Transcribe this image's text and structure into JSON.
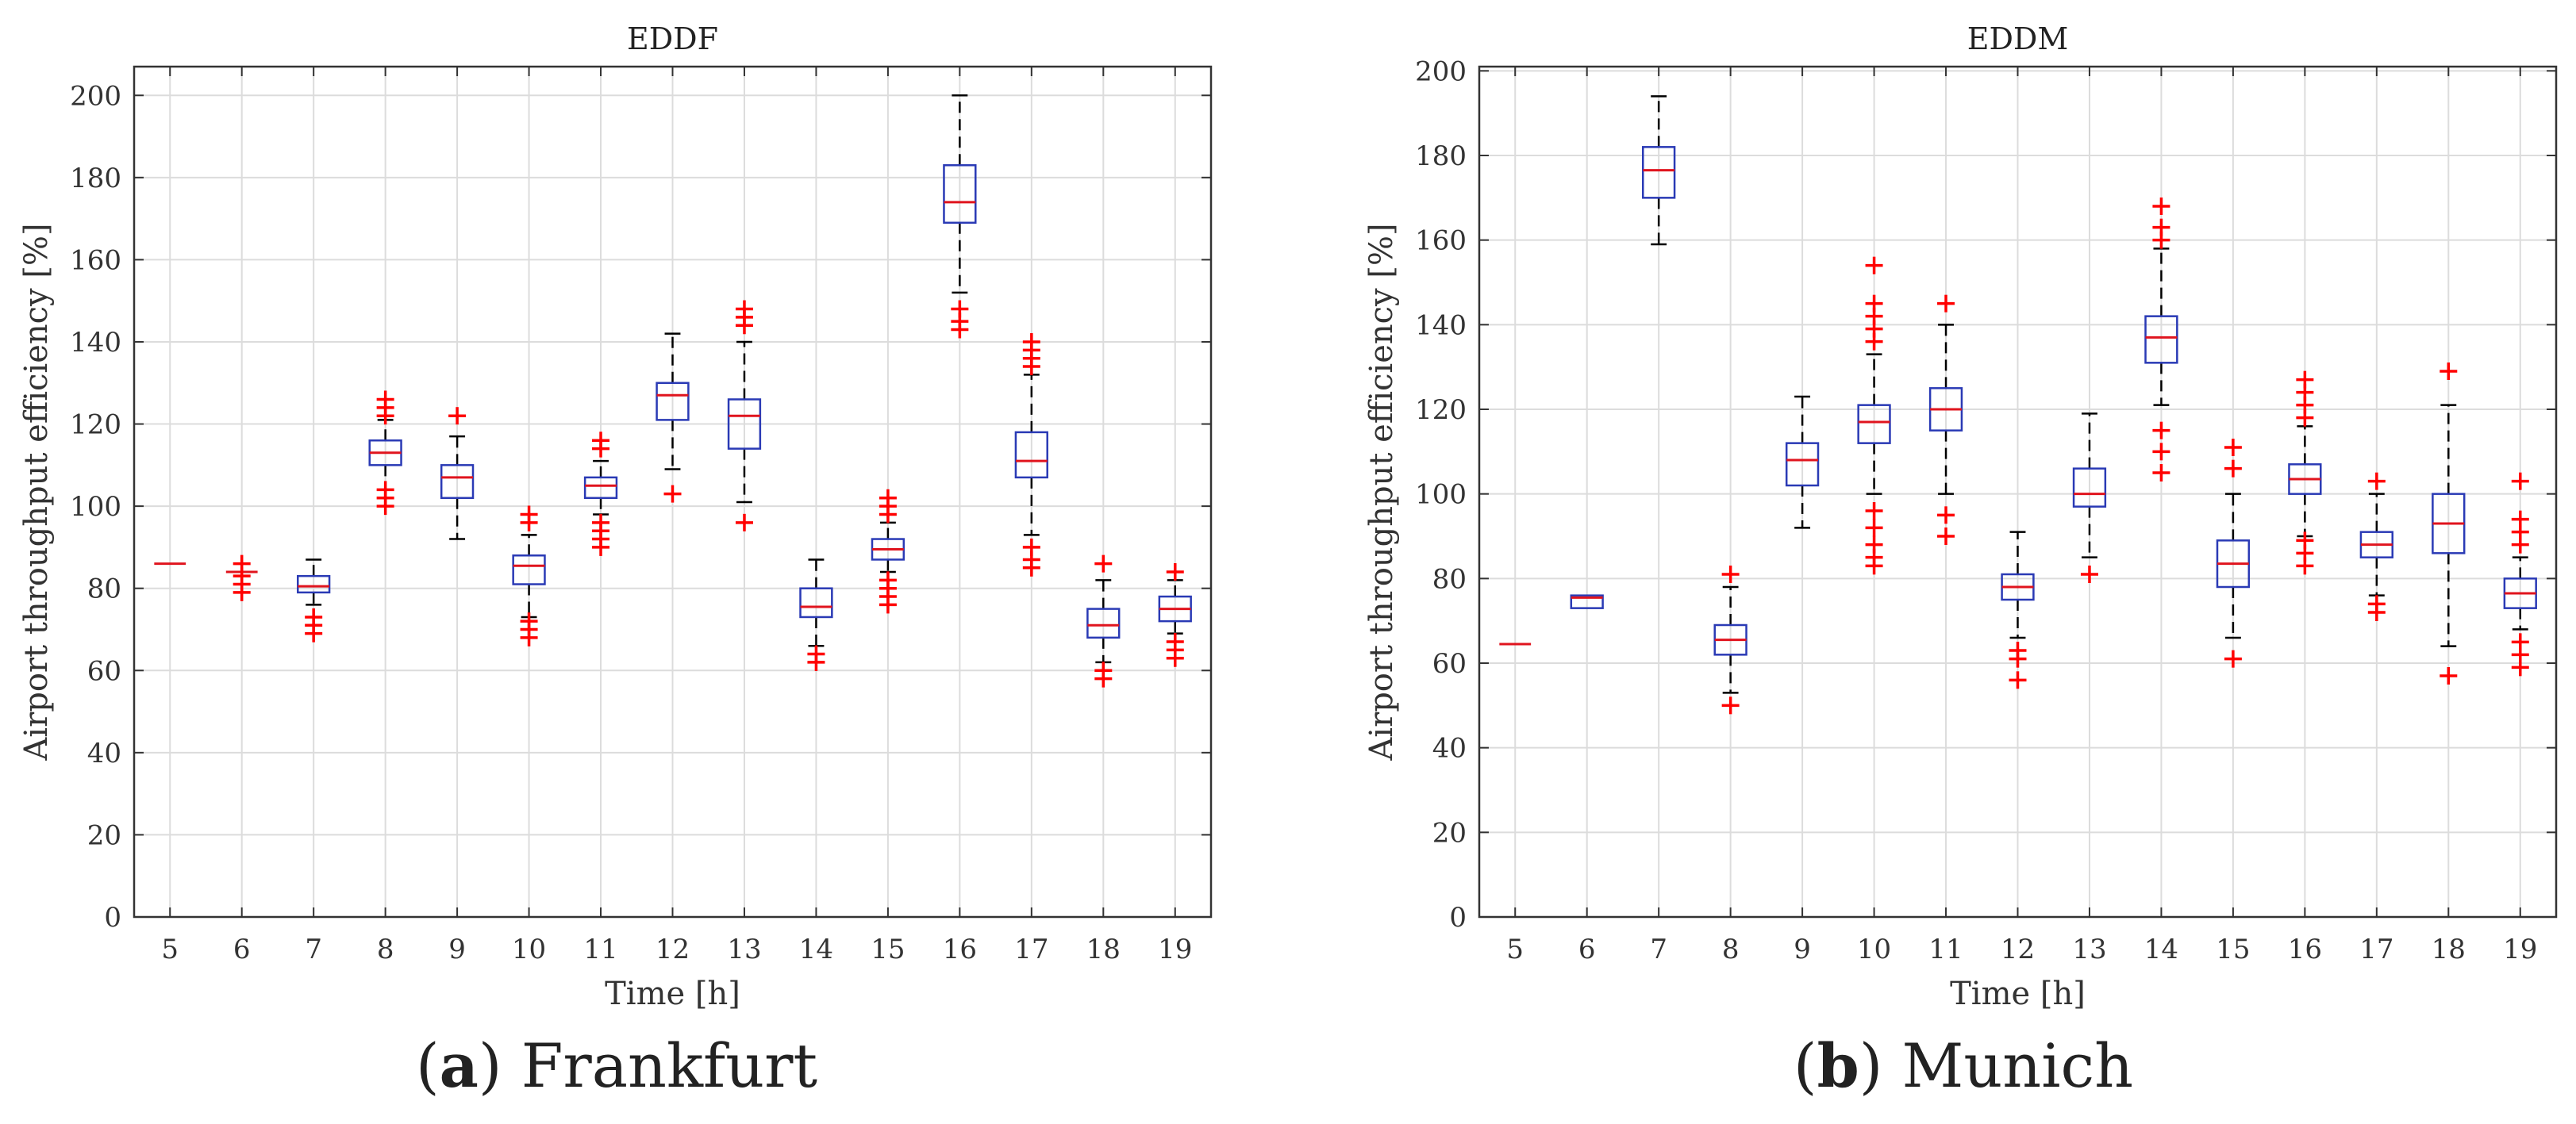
{
  "colors": {
    "box": "#2a3ab5",
    "median": "#e0141e",
    "outlier": "#ff0000",
    "whisker": "#000000",
    "grid": "#dcdcdc",
    "axis": "#333333"
  },
  "chart_data": [
    {
      "type": "boxplot",
      "title": "EDDF",
      "xlabel": "Time [h]",
      "ylabel": "Airport throughput efficiency [%]",
      "ylim": [
        0,
        207
      ],
      "yticks": [
        "0",
        "20",
        "40",
        "60",
        "80",
        "100",
        "120",
        "140",
        "160",
        "180",
        "200"
      ],
      "ytick_values": [
        0,
        20,
        40,
        60,
        80,
        100,
        120,
        140,
        160,
        180,
        200
      ],
      "grid": true,
      "caption_letter": "a",
      "caption_text": "Frankfurt",
      "boxes": [
        {
          "x": "5",
          "min": 86,
          "q1": 86,
          "median": 86,
          "q3": 86,
          "max": 86,
          "outliers": []
        },
        {
          "x": "6",
          "min": 84,
          "q1": 84,
          "median": 84,
          "q3": 84,
          "max": 84,
          "outliers": [
            79,
            81,
            83,
            86
          ]
        },
        {
          "x": "7",
          "min": 76,
          "q1": 79,
          "median": 80.5,
          "q3": 83,
          "max": 87,
          "outliers": [
            69,
            71,
            73
          ]
        },
        {
          "x": "8",
          "min": 104,
          "q1": 110,
          "median": 113,
          "q3": 116,
          "max": 121,
          "outliers": [
            100,
            102,
            104,
            122,
            124,
            126
          ]
        },
        {
          "x": "9",
          "min": 92,
          "q1": 102,
          "median": 107,
          "q3": 110,
          "max": 117,
          "outliers": [
            122
          ]
        },
        {
          "x": "10",
          "min": 73,
          "q1": 81,
          "median": 85.5,
          "q3": 88,
          "max": 93,
          "outliers": [
            68,
            70,
            72,
            96,
            98
          ]
        },
        {
          "x": "11",
          "min": 98,
          "q1": 102,
          "median": 105,
          "q3": 107,
          "max": 111,
          "outliers": [
            90,
            92,
            94,
            96,
            114,
            116
          ]
        },
        {
          "x": "12",
          "min": 109,
          "q1": 121,
          "median": 127,
          "q3": 130,
          "max": 142,
          "outliers": [
            103
          ]
        },
        {
          "x": "13",
          "min": 101,
          "q1": 114,
          "median": 122,
          "q3": 126,
          "max": 140,
          "outliers": [
            96,
            144,
            146,
            148
          ]
        },
        {
          "x": "14",
          "min": 66,
          "q1": 73,
          "median": 75.5,
          "q3": 80,
          "max": 87,
          "outliers": [
            62,
            64
          ]
        },
        {
          "x": "15",
          "min": 84,
          "q1": 87,
          "median": 89.5,
          "q3": 92,
          "max": 96,
          "outliers": [
            76,
            78,
            80,
            82,
            98,
            100,
            102
          ]
        },
        {
          "x": "16",
          "min": 152,
          "q1": 169,
          "median": 174,
          "q3": 183,
          "max": 200,
          "outliers": [
            143,
            145,
            148
          ]
        },
        {
          "x": "17",
          "min": 93,
          "q1": 107,
          "median": 111,
          "q3": 118,
          "max": 132,
          "outliers": [
            85,
            87,
            90,
            134,
            136,
            138,
            140
          ]
        },
        {
          "x": "18",
          "min": 62,
          "q1": 68,
          "median": 71,
          "q3": 75,
          "max": 82,
          "outliers": [
            58,
            60,
            86
          ]
        },
        {
          "x": "19",
          "min": 69,
          "q1": 72,
          "median": 75,
          "q3": 78,
          "max": 82,
          "outliers": [
            63,
            65,
            67,
            84
          ]
        }
      ]
    },
    {
      "type": "boxplot",
      "title": "EDDM",
      "xlabel": "Time [h]",
      "ylabel": "Airport throughput efficiency [%]",
      "ylim": [
        0,
        201
      ],
      "yticks": [
        "0",
        "20",
        "40",
        "60",
        "80",
        "100",
        "120",
        "140",
        "160",
        "180",
        "200"
      ],
      "ytick_values": [
        0,
        20,
        40,
        60,
        80,
        100,
        120,
        140,
        160,
        180,
        200
      ],
      "grid": true,
      "caption_letter": "b",
      "caption_text": "Munich",
      "boxes": [
        {
          "x": "5",
          "min": 64.5,
          "q1": 64.5,
          "median": 64.5,
          "q3": 64.5,
          "max": 64.5,
          "outliers": []
        },
        {
          "x": "6",
          "min": 73,
          "q1": 73,
          "median": 75.5,
          "q3": 76,
          "max": 76,
          "outliers": []
        },
        {
          "x": "7",
          "min": 159,
          "q1": 170,
          "median": 176.5,
          "q3": 182,
          "max": 194,
          "outliers": []
        },
        {
          "x": "8",
          "min": 53,
          "q1": 62,
          "median": 65.5,
          "q3": 69,
          "max": 78,
          "outliers": [
            50,
            81
          ]
        },
        {
          "x": "9",
          "min": 92,
          "q1": 102,
          "median": 108,
          "q3": 112,
          "max": 123,
          "outliers": []
        },
        {
          "x": "10",
          "min": 100,
          "q1": 112,
          "median": 117,
          "q3": 121,
          "max": 133,
          "outliers": [
            83,
            85,
            88,
            92,
            96,
            136,
            139,
            142,
            145,
            154
          ]
        },
        {
          "x": "11",
          "min": 100,
          "q1": 115,
          "median": 120,
          "q3": 125,
          "max": 140,
          "outliers": [
            90,
            95,
            145
          ]
        },
        {
          "x": "12",
          "min": 66,
          "q1": 75,
          "median": 78,
          "q3": 81,
          "max": 91,
          "outliers": [
            56,
            61,
            63
          ]
        },
        {
          "x": "13",
          "min": 85,
          "q1": 97,
          "median": 100,
          "q3": 106,
          "max": 119,
          "outliers": [
            81
          ]
        },
        {
          "x": "14",
          "min": 121,
          "q1": 131,
          "median": 137,
          "q3": 142,
          "max": 158,
          "outliers": [
            105,
            110,
            115,
            160,
            163,
            168
          ]
        },
        {
          "x": "15",
          "min": 66,
          "q1": 78,
          "median": 83.5,
          "q3": 89,
          "max": 100,
          "outliers": [
            61,
            106,
            111
          ]
        },
        {
          "x": "16",
          "min": 90,
          "q1": 100,
          "median": 103.5,
          "q3": 107,
          "max": 116,
          "outliers": [
            83,
            86,
            89,
            118,
            121,
            124,
            127
          ]
        },
        {
          "x": "17",
          "min": 76,
          "q1": 85,
          "median": 88,
          "q3": 91,
          "max": 100,
          "outliers": [
            72,
            74,
            103
          ]
        },
        {
          "x": "18",
          "min": 64,
          "q1": 86,
          "median": 93,
          "q3": 100,
          "max": 121,
          "outliers": [
            57,
            129
          ]
        },
        {
          "x": "19",
          "min": 68,
          "q1": 73,
          "median": 76.5,
          "q3": 80,
          "max": 85,
          "outliers": [
            59,
            62,
            65,
            88,
            91,
            94,
            103
          ]
        }
      ]
    }
  ]
}
